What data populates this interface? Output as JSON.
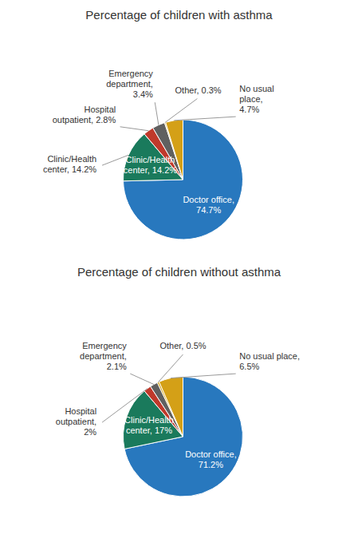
{
  "chart_data": [
    {
      "type": "pie",
      "title": "Percentage of children with asthma",
      "values": [
        74.7,
        14.2,
        2.8,
        3.4,
        0.3,
        4.7
      ],
      "value_labels": [
        "Doctor office,\n74.7%",
        "Clinic/Health\ncenter, 14.2%",
        "Hospital\noutpatient, 2.8%",
        "Emergency\ndepartment,\n3.4%",
        "Other, 0.3%",
        "No usual\nplace,\n4.7%"
      ],
      "colors": [
        "#2878BE",
        "#1A7A5C",
        "#C0392B",
        "#606060",
        "#D4A017",
        "#D4A017"
      ],
      "data_labels": true,
      "annotations": [
        "Clinic/Health\ncenter, 14.2%"
      ]
    },
    {
      "type": "pie",
      "title": "Percentage of children without asthma",
      "values": [
        71.2,
        17.0,
        2.0,
        2.1,
        0.5,
        6.5
      ],
      "value_labels": [
        "Doctor office,\n71.2%",
        "Clinic/Health\ncenter, 17%",
        "Hospital\noutpatient,\n2%",
        "Emergency\ndepartment,\n2.1%",
        "Other, 0.5%",
        "No usual place,\n6.5%"
      ],
      "colors": [
        "#2878BE",
        "#1A7A5C",
        "#C0392B",
        "#606060",
        "#D4A017",
        "#D4A017"
      ],
      "data_labels": true
    }
  ]
}
